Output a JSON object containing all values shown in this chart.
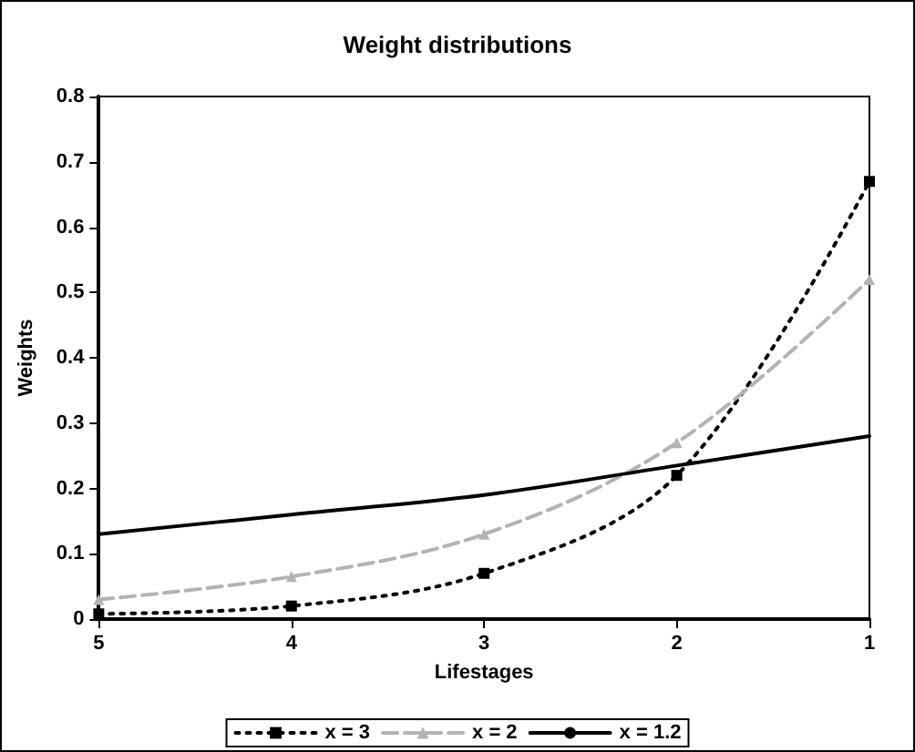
{
  "chart_data": {
    "type": "line",
    "title": "Weight distributions",
    "xlabel": "Lifestages",
    "ylabel": "Weights",
    "x": [
      5,
      4,
      3,
      2,
      1
    ],
    "series": [
      {
        "name": "x = 3",
        "color": "#000000",
        "values": [
          0.008,
          0.02,
          0.07,
          0.22,
          0.67
        ],
        "marker": "square",
        "line_style": "dotted"
      },
      {
        "name": "x = 2",
        "color": "#b3b3b3",
        "values": [
          0.03,
          0.065,
          0.13,
          0.27,
          0.52
        ],
        "marker": "triangle",
        "line_style": "dashed"
      },
      {
        "name": "x = 1.2",
        "color": "#000000",
        "values": [
          0.13,
          0.16,
          0.19,
          0.235,
          0.28
        ],
        "marker": "none",
        "line_style": "solid"
      }
    ],
    "xlim": [
      5,
      1
    ],
    "xticks": [
      5,
      4,
      3,
      2,
      1
    ],
    "ylim": [
      0,
      0.8
    ],
    "yticks": [
      0,
      0.1,
      0.2,
      0.3,
      0.4,
      0.5,
      0.6,
      0.7,
      0.8
    ],
    "grid": false,
    "legend": "bottom"
  }
}
